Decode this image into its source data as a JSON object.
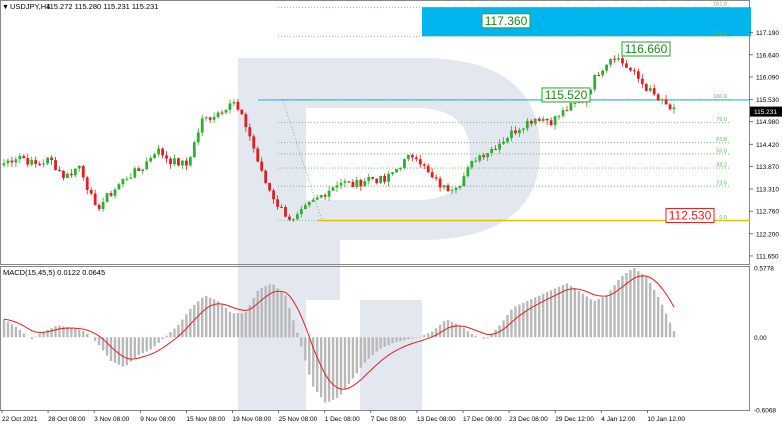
{
  "header": {
    "symbol_label": "USDJPY,H4",
    "ohlc": "115.272 115.280 115.231 115.231"
  },
  "macd_header": "MACD(15,45,5) 0.0122 0.0645",
  "colors": {
    "bull": "#2eae2e",
    "bear": "#e01e1e",
    "cyan_line": "#35b6d6",
    "target_box": "#00b4ee",
    "yellow_line": "#d8c400",
    "fib_line": "#5ab85a",
    "signal": "#e02020",
    "histogram": "#b8b8b8",
    "watermark": "#e3e8f0"
  },
  "chart_data": [
    {
      "type": "candlestick",
      "title": "USDJPY,H4",
      "ylim": [
        111.45,
        117.95
      ],
      "y_ticks": [
        "117.190",
        "116.640",
        "116.090",
        "115.530",
        "114.980",
        "114.420",
        "113.870",
        "113.310",
        "112.760",
        "112.200",
        "111.650"
      ],
      "x_labels": [
        "22 Oct 2021",
        "28 Oct 08:00",
        "3 Nov 08:00",
        "9 Nov 08:00",
        "15 Nov 08:00",
        "19 Nov 08:00",
        "25 Nov 08:00",
        "1 Dec 08:00",
        "7 Dec 08:00",
        "13 Dec 08:00",
        "17 Dec 08:00",
        "23 Dec 08:00",
        "29 Dec 12:00",
        "4 Jan 12:00",
        "10 Jan 12:00"
      ],
      "current_price": "115.231",
      "anchor_prices": [
        113.95,
        114.15,
        113.9,
        114.05,
        113.6,
        113.9,
        112.8,
        113.2,
        113.6,
        113.8,
        114.3,
        114.0,
        113.9,
        115.0,
        115.2,
        115.5,
        114.8,
        113.6,
        112.9,
        112.5,
        112.9,
        113.2,
        113.5,
        113.4,
        113.6,
        113.5,
        113.9,
        114.2,
        113.6,
        113.3,
        113.5,
        114.1,
        114.3,
        114.6,
        114.9,
        115.1,
        115.0,
        115.3,
        115.5,
        116.2,
        116.66,
        116.3,
        115.9,
        115.5,
        115.23
      ],
      "levels": [
        {
          "label": "117.360",
          "price": 117.36,
          "box_color": "green"
        },
        {
          "label": "116.660",
          "price": 116.66,
          "box_color": "green"
        },
        {
          "label": "115.520",
          "price": 115.52,
          "box_color": "green"
        },
        {
          "label": "112.530",
          "price": 112.53,
          "box_color": "red"
        }
      ],
      "fibonacci": [
        {
          "label": "161.8",
          "price": 117.82
        },
        {
          "label": "138.2",
          "price": 117.1
        },
        {
          "label": "100.0",
          "price": 115.53
        },
        {
          "label": "76.0",
          "price": 114.96
        },
        {
          "label": "61.8",
          "price": 114.46
        },
        {
          "label": "50.0",
          "price": 114.18
        },
        {
          "label": "38.2",
          "price": 113.83
        },
        {
          "label": "23.6",
          "price": 113.38
        },
        {
          "label": "0.0",
          "price": 112.53
        }
      ]
    },
    {
      "type": "histogram",
      "title": "MACD(15,45,5) 0.0122 0.0645",
      "ylim": [
        -0.6068,
        0.5778
      ],
      "y_ticks": [
        "0.5778",
        "0.00",
        "-0.6068"
      ],
      "values": [
        0.15,
        0.08,
        -0.02,
        0.05,
        0.1,
        0.08,
        0.05,
        -0.05,
        -0.2,
        -0.25,
        -0.15,
        -0.1,
        0.0,
        0.1,
        0.25,
        0.35,
        0.3,
        0.2,
        0.2,
        0.4,
        0.45,
        0.35,
        0.0,
        -0.4,
        -0.55,
        -0.5,
        -0.35,
        -0.2,
        -0.1,
        -0.05,
        -0.02,
        0.0,
        0.05,
        0.15,
        0.1,
        0.02,
        -0.02,
        0.1,
        0.25,
        0.3,
        0.35,
        0.4,
        0.45,
        0.38,
        0.3,
        0.35,
        0.5,
        0.58,
        0.5,
        0.3,
        0.05
      ]
    }
  ]
}
